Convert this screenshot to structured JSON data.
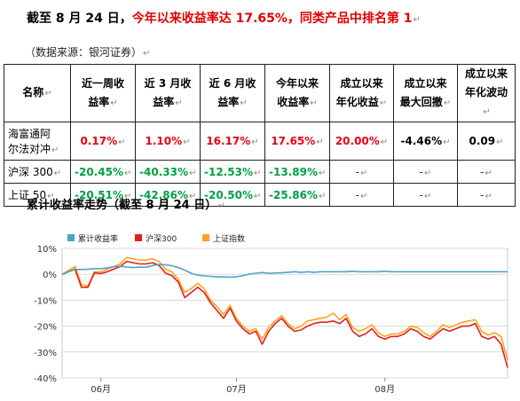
{
  "headline": {
    "prefix": "截至 8 月 24 日，",
    "highlight": "今年以来收益率达 17.65%，同类产品中排名第 1"
  },
  "source_note": "（数据来源：银河证券）",
  "para_mark": "↵",
  "table": {
    "headers": [
      [
        "名称"
      ],
      [
        "近一周收",
        "益率"
      ],
      [
        "近 3 月收",
        "益率"
      ],
      [
        "近 6 月收",
        "益率"
      ],
      [
        "今年以来",
        "收益率"
      ],
      [
        "成立以来",
        "年化收益"
      ],
      [
        "成立以来",
        "最大回撤"
      ],
      [
        "成立以来",
        "年化波动"
      ]
    ],
    "rows": [
      {
        "name_lines": [
          "海富通阿",
          "尔法对冲"
        ],
        "cells": [
          {
            "v": "0.17%",
            "color": "red"
          },
          {
            "v": "1.10%",
            "color": "red"
          },
          {
            "v": "16.17%",
            "color": "red"
          },
          {
            "v": "17.65%",
            "color": "red"
          },
          {
            "v": "20.00%",
            "color": "red"
          },
          {
            "v": "-4.46%",
            "color": "black"
          },
          {
            "v": "0.09",
            "color": "black"
          }
        ]
      },
      {
        "name_lines": [
          "沪深 300"
        ],
        "cells": [
          {
            "v": "-20.45%",
            "color": "green"
          },
          {
            "v": "-40.33%",
            "color": "green"
          },
          {
            "v": "-12.53%",
            "color": "green"
          },
          {
            "v": "-13.89%",
            "color": "green"
          },
          {
            "v": "-",
            "color": "dash"
          },
          {
            "v": "-",
            "color": "dash"
          },
          {
            "v": "-",
            "color": "dash"
          }
        ]
      },
      {
        "name_lines": [
          "上证 50"
        ],
        "cells": [
          {
            "v": "-20.51%",
            "color": "green"
          },
          {
            "v": "-42.86%",
            "color": "green"
          },
          {
            "v": "-20.50%",
            "color": "green"
          },
          {
            "v": "-25.86%",
            "color": "green"
          },
          {
            "v": "-",
            "color": "dash"
          },
          {
            "v": "-",
            "color": "dash"
          },
          {
            "v": "-",
            "color": "dash"
          }
        ]
      }
    ]
  },
  "colors": {
    "red": "#e60012",
    "green": "#00a040",
    "header_text": "#000000",
    "series_fund": "#4fa3c7",
    "series_hs300": "#e3201b",
    "series_sz50": "#f5a623"
  },
  "chart_title": "累计收益率走势（截至 8 月 24 日）",
  "chart_data": {
    "type": "line",
    "legend_position": "top-left",
    "grid": true,
    "ylim": [
      -40,
      10
    ],
    "yticks": [
      10,
      0,
      -10,
      -20,
      -30,
      -40
    ],
    "ytick_labels": [
      "10%",
      "0%",
      "-10%",
      "-20%",
      "-30%",
      "-40%"
    ],
    "xlim": [
      0,
      69
    ],
    "xticks": [
      {
        "x": 6,
        "label": "06月"
      },
      {
        "x": 27,
        "label": "07月"
      },
      {
        "x": 50,
        "label": "08月"
      }
    ],
    "series": [
      {
        "name": "累计收益率",
        "color": "#4fa3c7",
        "values": [
          0,
          1.0,
          1.8,
          1.9,
          2.0,
          2.2,
          2.2,
          2.5,
          2.9,
          3.1,
          2.8,
          2.6,
          2.8,
          2.7,
          3.4,
          3.8,
          3.7,
          3.3,
          2.6,
          1.6,
          0.4,
          -0.3,
          -0.6,
          -0.8,
          -1.0,
          -1.0,
          -1.1,
          -1.0,
          -0.5,
          0.1,
          0.4,
          0.7,
          0.4,
          0.5,
          0.6,
          0.8,
          1.0,
          0.8,
          1.0,
          0.8,
          1.0,
          1.0,
          1.0,
          1.0,
          1.0,
          1.2,
          1.0,
          1.0,
          1.0,
          1.0,
          1.2,
          1.0,
          1.0,
          1.0,
          1.0,
          1.0,
          1.0,
          1.0,
          1.0,
          1.0,
          1.0,
          1.0,
          1.0,
          1.0,
          1.0,
          1.0,
          1.0,
          1.0,
          1.0,
          1.0
        ]
      },
      {
        "name": "沪深300",
        "color": "#e3201b",
        "values": [
          0,
          1.0,
          2.0,
          -5.0,
          -5.0,
          0.5,
          0.3,
          1.0,
          2.0,
          3.0,
          5.0,
          4.5,
          4.0,
          4.0,
          4.5,
          3.5,
          0.5,
          -0.5,
          -3.0,
          -9.0,
          -7.0,
          -5.0,
          -7.0,
          -11.0,
          -14.0,
          -17.0,
          -13.0,
          -18.0,
          -21.0,
          -23.0,
          -22.0,
          -27.0,
          -22.0,
          -19.0,
          -17.0,
          -20.0,
          -22.0,
          -21.5,
          -20.0,
          -19.0,
          -18.5,
          -18.5,
          -18.0,
          -19.0,
          -17.0,
          -22.0,
          -24.0,
          -23.0,
          -21.0,
          -24.0,
          -25.0,
          -24.0,
          -24.0,
          -23.0,
          -21.0,
          -22.0,
          -24.0,
          -25.0,
          -23.0,
          -21.0,
          -22.0,
          -21.0,
          -20.0,
          -20.0,
          -19.0,
          -24.0,
          -25.0,
          -24.0,
          -27.0,
          -36.0
        ]
      },
      {
        "name": "上证指数",
        "color": "#f5a623",
        "values": [
          0,
          1.5,
          3.0,
          -4.0,
          -4.5,
          1.0,
          1.0,
          2.0,
          3.0,
          4.0,
          6.5,
          6.0,
          5.5,
          5.5,
          6.0,
          5.0,
          2.0,
          1.0,
          -2.0,
          -7.0,
          -5.5,
          -3.5,
          -5.5,
          -10.0,
          -12.5,
          -15.5,
          -12.0,
          -17.0,
          -20.0,
          -22.0,
          -21.0,
          -25.0,
          -20.5,
          -18.0,
          -16.0,
          -19.0,
          -21.0,
          -20.0,
          -18.0,
          -17.5,
          -17.0,
          -16.5,
          -15.0,
          -17.5,
          -15.5,
          -20.5,
          -22.0,
          -21.0,
          -19.5,
          -22.5,
          -24.0,
          -23.0,
          -23.0,
          -22.0,
          -20.0,
          -20.5,
          -22.5,
          -24.0,
          -22.0,
          -19.5,
          -20.5,
          -19.5,
          -18.5,
          -18.0,
          -17.5,
          -22.0,
          -23.5,
          -22.5,
          -24.0,
          -33.0
        ]
      }
    ]
  }
}
